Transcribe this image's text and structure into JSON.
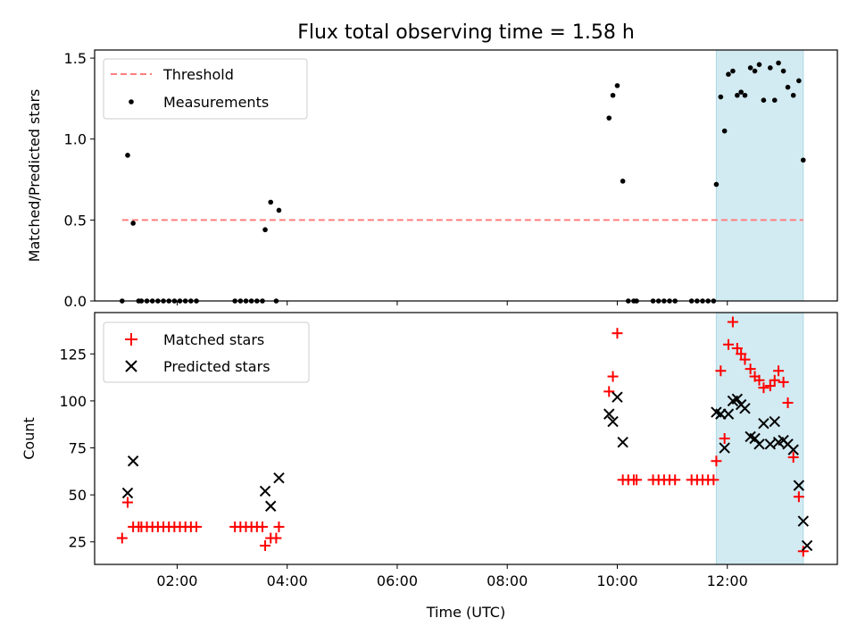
{
  "chart_data": {
    "title": "Flux total observing time = 1.58 h",
    "shared_x": {
      "label": "Time (UTC)",
      "unit": "hours",
      "range": [
        0.5,
        14.0
      ],
      "ticks": [
        2,
        4,
        6,
        8,
        10,
        12
      ],
      "tick_labels": [
        "02:00",
        "04:00",
        "06:00",
        "08:00",
        "10:00",
        "12:00"
      ]
    },
    "highlight_span": {
      "x0": 11.8,
      "x1": 13.38,
      "color": "#add8e6"
    },
    "panels": [
      {
        "type": "scatter",
        "ylabel": "Matched/Predicted stars",
        "ylim": [
          0,
          1.55
        ],
        "yticks": [
          0,
          0.5,
          1.0,
          1.5
        ],
        "ytick_labels": [
          "0.0",
          "0.5",
          "1.0",
          "1.5"
        ],
        "threshold": {
          "name": "Threshold",
          "value": 0.5,
          "x0": 1.0,
          "x1": 13.38,
          "color": "#ff7f7f"
        },
        "legend": [
          "Threshold",
          "Measurements"
        ],
        "series": [
          {
            "name": "Measurements",
            "color": "#000000",
            "points": [
              [
                1.0,
                0
              ],
              [
                1.1,
                0.9
              ],
              [
                1.2,
                0.48
              ],
              [
                1.3,
                0
              ],
              [
                1.35,
                0
              ],
              [
                1.45,
                0
              ],
              [
                1.55,
                0
              ],
              [
                1.65,
                0
              ],
              [
                1.75,
                0
              ],
              [
                1.85,
                0
              ],
              [
                1.95,
                0
              ],
              [
                2.05,
                0
              ],
              [
                2.15,
                0
              ],
              [
                2.25,
                0
              ],
              [
                2.35,
                0
              ],
              [
                3.05,
                0
              ],
              [
                3.15,
                0
              ],
              [
                3.25,
                0
              ],
              [
                3.35,
                0
              ],
              [
                3.45,
                0
              ],
              [
                3.55,
                0
              ],
              [
                3.6,
                0.44
              ],
              [
                3.7,
                0.61
              ],
              [
                3.8,
                0
              ],
              [
                3.85,
                0.56
              ],
              [
                9.85,
                1.13
              ],
              [
                9.92,
                1.27
              ],
              [
                10.0,
                1.33
              ],
              [
                10.1,
                0.74
              ],
              [
                10.2,
                0
              ],
              [
                10.3,
                0
              ],
              [
                10.35,
                0
              ],
              [
                10.65,
                0
              ],
              [
                10.75,
                0
              ],
              [
                10.85,
                0
              ],
              [
                10.95,
                0
              ],
              [
                11.05,
                0
              ],
              [
                11.35,
                0
              ],
              [
                11.45,
                0
              ],
              [
                11.55,
                0
              ],
              [
                11.65,
                0
              ],
              [
                11.75,
                0
              ],
              [
                11.8,
                0.72
              ],
              [
                11.88,
                1.26
              ],
              [
                11.95,
                1.05
              ],
              [
                12.02,
                1.4
              ],
              [
                12.1,
                1.42
              ],
              [
                12.18,
                1.27
              ],
              [
                12.25,
                1.29
              ],
              [
                12.32,
                1.27
              ],
              [
                12.42,
                1.44
              ],
              [
                12.5,
                1.42
              ],
              [
                12.58,
                1.46
              ],
              [
                12.66,
                1.24
              ],
              [
                12.78,
                1.44
              ],
              [
                12.86,
                1.24
              ],
              [
                12.93,
                1.47
              ],
              [
                13.02,
                1.42
              ],
              [
                13.1,
                1.32
              ],
              [
                13.2,
                1.27
              ],
              [
                13.3,
                1.36
              ],
              [
                13.38,
                0.87
              ]
            ]
          }
        ]
      },
      {
        "type": "scatter",
        "ylabel": "Count",
        "ylim": [
          13,
          147
        ],
        "yticks": [
          25,
          50,
          75,
          100,
          125
        ],
        "ytick_labels": [
          "25",
          "50",
          "75",
          "100",
          "125"
        ],
        "legend": [
          "Matched stars",
          "Predicted stars"
        ],
        "series": [
          {
            "name": "Matched stars",
            "marker": "plus",
            "color": "#ff0000",
            "points": [
              [
                1.0,
                27
              ],
              [
                1.1,
                46
              ],
              [
                1.2,
                33
              ],
              [
                1.3,
                33
              ],
              [
                1.35,
                33
              ],
              [
                1.45,
                33
              ],
              [
                1.55,
                33
              ],
              [
                1.65,
                33
              ],
              [
                1.75,
                33
              ],
              [
                1.85,
                33
              ],
              [
                1.95,
                33
              ],
              [
                2.05,
                33
              ],
              [
                2.15,
                33
              ],
              [
                2.25,
                33
              ],
              [
                2.35,
                33
              ],
              [
                3.05,
                33
              ],
              [
                3.15,
                33
              ],
              [
                3.25,
                33
              ],
              [
                3.35,
                33
              ],
              [
                3.45,
                33
              ],
              [
                3.55,
                33
              ],
              [
                3.6,
                23
              ],
              [
                3.7,
                27
              ],
              [
                3.8,
                27
              ],
              [
                3.85,
                33
              ],
              [
                9.85,
                105
              ],
              [
                9.92,
                113
              ],
              [
                10.0,
                136
              ],
              [
                10.1,
                58
              ],
              [
                10.2,
                58
              ],
              [
                10.3,
                58
              ],
              [
                10.35,
                58
              ],
              [
                10.65,
                58
              ],
              [
                10.75,
                58
              ],
              [
                10.85,
                58
              ],
              [
                10.95,
                58
              ],
              [
                11.05,
                58
              ],
              [
                11.35,
                58
              ],
              [
                11.45,
                58
              ],
              [
                11.55,
                58
              ],
              [
                11.65,
                58
              ],
              [
                11.75,
                58
              ],
              [
                11.8,
                68
              ],
              [
                11.88,
                116
              ],
              [
                11.95,
                80
              ],
              [
                12.02,
                130
              ],
              [
                12.1,
                142
              ],
              [
                12.18,
                128
              ],
              [
                12.25,
                125
              ],
              [
                12.32,
                122
              ],
              [
                12.42,
                117
              ],
              [
                12.5,
                113
              ],
              [
                12.58,
                111
              ],
              [
                12.66,
                107
              ],
              [
                12.78,
                108
              ],
              [
                12.86,
                111
              ],
              [
                12.93,
                116
              ],
              [
                13.02,
                110
              ],
              [
                13.1,
                99
              ],
              [
                13.2,
                70
              ],
              [
                13.3,
                49
              ],
              [
                13.38,
                20
              ]
            ]
          },
          {
            "name": "Predicted stars",
            "marker": "x",
            "color": "#000000",
            "points": [
              [
                1.1,
                51
              ],
              [
                1.2,
                68
              ],
              [
                3.6,
                52
              ],
              [
                3.7,
                44
              ],
              [
                3.85,
                59
              ],
              [
                9.85,
                93
              ],
              [
                9.92,
                89
              ],
              [
                10.0,
                102
              ],
              [
                10.1,
                78
              ],
              [
                11.8,
                94
              ],
              [
                11.88,
                93
              ],
              [
                11.95,
                75
              ],
              [
                12.02,
                93
              ],
              [
                12.1,
                100
              ],
              [
                12.18,
                101
              ],
              [
                12.25,
                98
              ],
              [
                12.32,
                96
              ],
              [
                12.42,
                81
              ],
              [
                12.5,
                80
              ],
              [
                12.58,
                77
              ],
              [
                12.66,
                88
              ],
              [
                12.78,
                77
              ],
              [
                12.86,
                89
              ],
              [
                12.93,
                78
              ],
              [
                13.02,
                79
              ],
              [
                13.1,
                77
              ],
              [
                13.2,
                74
              ],
              [
                13.3,
                55
              ],
              [
                13.38,
                36
              ],
              [
                13.45,
                23
              ]
            ]
          }
        ]
      }
    ]
  }
}
